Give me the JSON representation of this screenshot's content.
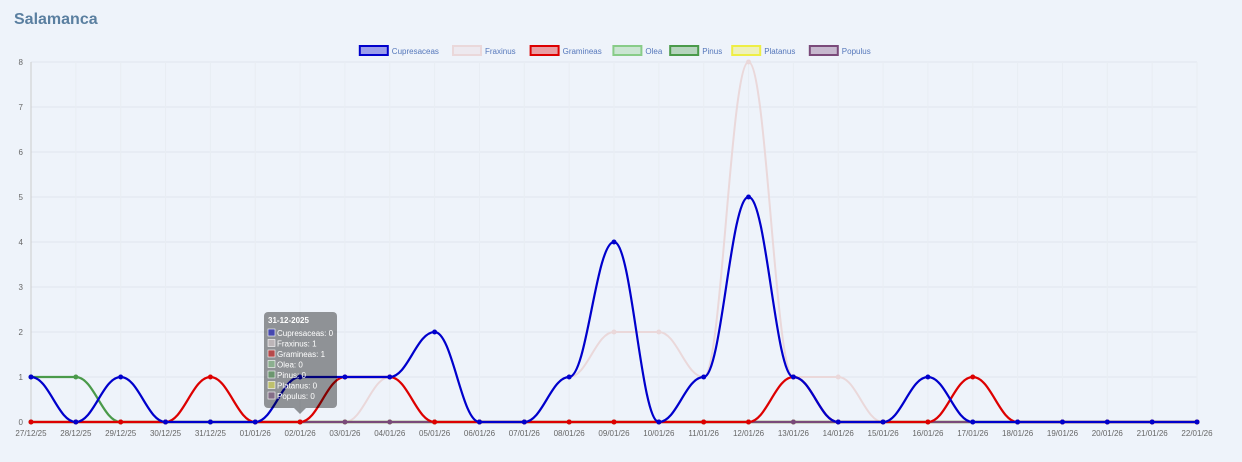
{
  "header": {
    "title": "Salamanca"
  },
  "chart_data": {
    "type": "line",
    "categories": [
      "27/12/25",
      "28/12/25",
      "29/12/25",
      "30/12/25",
      "31/12/25",
      "01/01/26",
      "02/01/26",
      "03/01/26",
      "04/01/26",
      "05/01/26",
      "06/01/26",
      "07/01/26",
      "08/01/26",
      "09/01/26",
      "10/01/26",
      "11/01/26",
      "12/01/26",
      "13/01/26",
      "14/01/26",
      "15/01/26",
      "16/01/26",
      "17/01/26",
      "18/01/26",
      "19/01/26",
      "20/01/26",
      "21/01/26",
      "22/01/26"
    ],
    "series": [
      {
        "name": "Cupresaceas",
        "color": "#0000cc",
        "values": [
          1,
          0,
          1,
          0,
          0,
          0,
          1,
          1,
          1,
          2,
          0,
          0,
          1,
          4,
          0,
          1,
          5,
          1,
          0,
          0,
          1,
          0,
          0,
          0,
          0,
          0,
          0
        ]
      },
      {
        "name": "Fraxinus",
        "color": "#ead8da",
        "values": [
          0,
          0,
          0,
          0,
          1,
          0,
          0,
          0,
          1,
          0,
          0,
          0,
          1,
          2,
          2,
          1,
          8,
          1,
          1,
          0,
          0,
          1,
          0,
          0,
          0,
          0,
          0
        ]
      },
      {
        "name": "Gramineas",
        "color": "#dd0000",
        "values": [
          0,
          0,
          0,
          0,
          1,
          0,
          0,
          1,
          1,
          0,
          0,
          0,
          0,
          0,
          0,
          0,
          0,
          1,
          0,
          0,
          0,
          1,
          0,
          0,
          0,
          0,
          0
        ]
      },
      {
        "name": "Olea",
        "color": "#88cc88",
        "values": [
          0,
          0,
          0,
          0,
          0,
          0,
          0,
          0,
          0,
          0,
          0,
          0,
          0,
          0,
          0,
          0,
          0,
          0,
          0,
          0,
          0,
          0,
          0,
          0,
          0,
          0,
          0
        ]
      },
      {
        "name": "Pinus",
        "color": "#4a9a4a",
        "values": [
          1,
          1,
          0,
          0,
          0,
          0,
          0,
          0,
          0,
          0,
          0,
          0,
          0,
          0,
          0,
          0,
          0,
          0,
          0,
          0,
          0,
          0,
          0,
          0,
          0,
          0,
          0
        ]
      },
      {
        "name": "Platanus",
        "color": "#eeee44",
        "values": [
          0,
          0,
          0,
          0,
          0,
          0,
          0,
          0,
          0,
          0,
          0,
          0,
          0,
          0,
          0,
          0,
          0,
          0,
          0,
          0,
          0,
          0,
          0,
          0,
          0,
          0,
          0
        ]
      },
      {
        "name": "Populus",
        "color": "#7a4a7a",
        "values": [
          0,
          0,
          0,
          0,
          0,
          0,
          0,
          0,
          0,
          0,
          0,
          0,
          0,
          0,
          0,
          0,
          0,
          0,
          0,
          0,
          0,
          0,
          0,
          0,
          0,
          0,
          0
        ]
      }
    ],
    "ylim": [
      0,
      8
    ],
    "yticks": [
      0,
      1,
      2,
      3,
      4,
      5,
      6,
      7,
      8
    ],
    "grid": true,
    "tooltip": {
      "title": "31-12-2025",
      "items": [
        "Cupresaceas: 0",
        "Fraxinus: 1",
        "Gramineas: 1",
        "Olea: 0",
        "Pinus: 0",
        "Platanus: 0",
        "Populus: 0"
      ]
    }
  }
}
